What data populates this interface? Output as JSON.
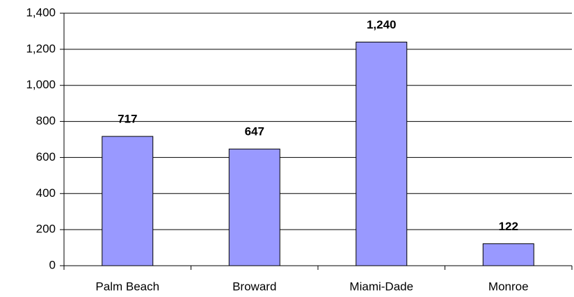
{
  "chart_data": {
    "type": "bar",
    "categories": [
      "Palm Beach",
      "Broward",
      "Miami-Dade",
      "Monroe"
    ],
    "values": [
      717,
      647,
      1240,
      122
    ],
    "value_labels": [
      "717",
      "647",
      "1,240",
      "122"
    ],
    "color": "#9999ff",
    "ylim": [
      0,
      1400
    ],
    "yticks": [
      0,
      200,
      400,
      600,
      800,
      {
        "value": 1000,
        "label": "1,000"
      },
      {
        "value": 1200,
        "label": "1,200"
      },
      {
        "value": 1400,
        "label": "1,400"
      }
    ],
    "grid": true
  }
}
